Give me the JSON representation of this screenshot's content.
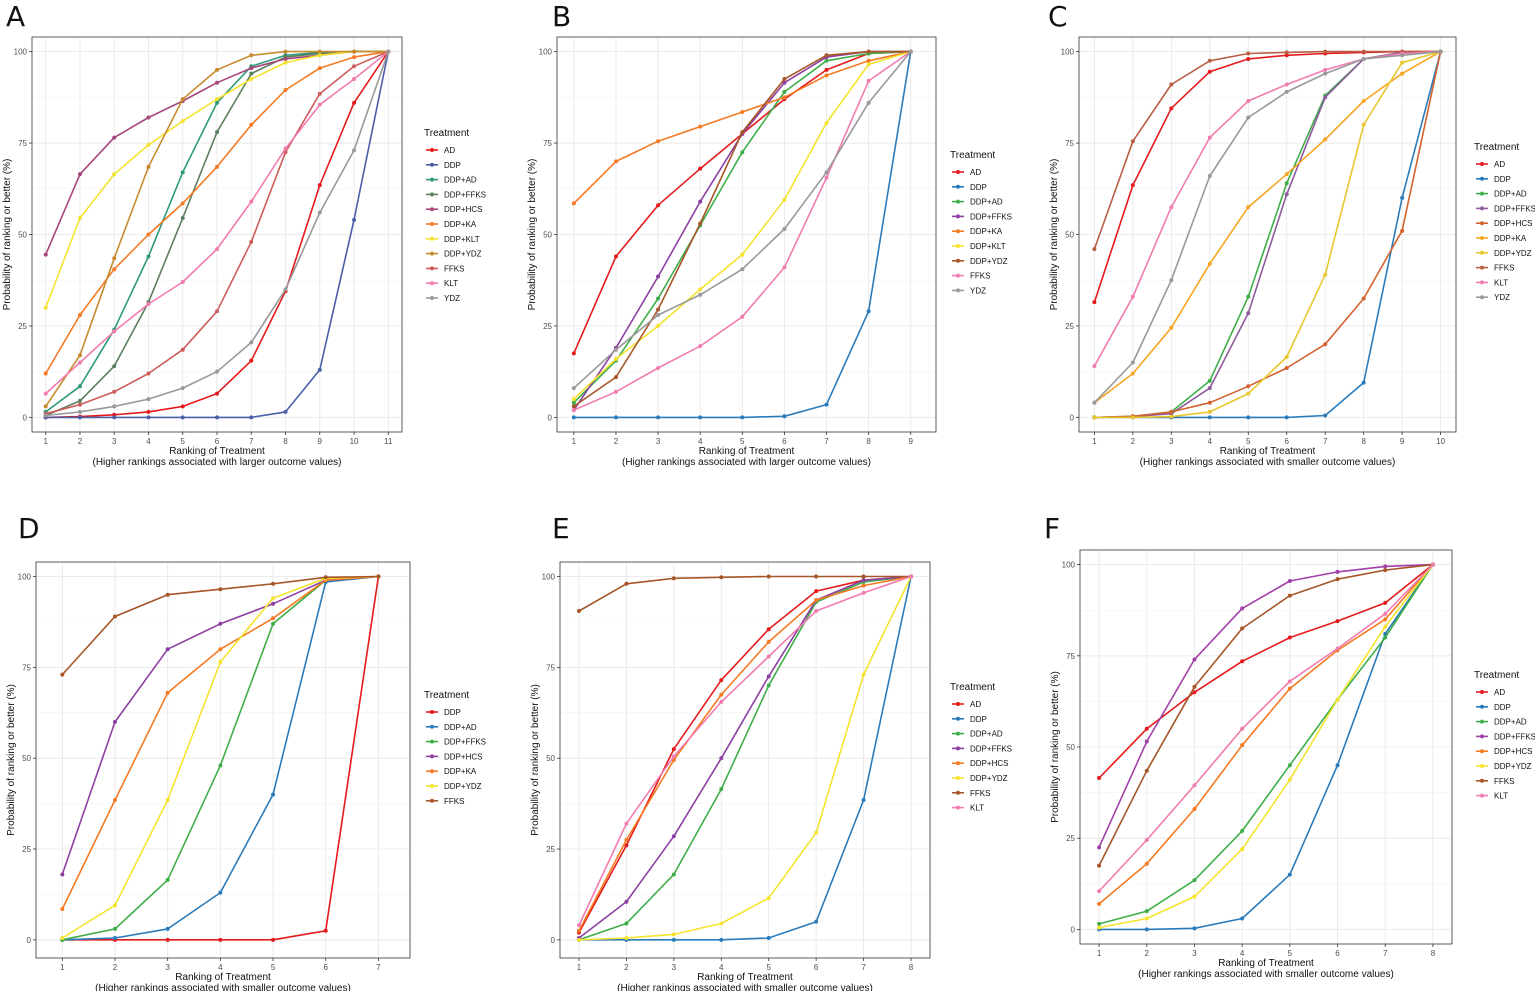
{
  "figure": {
    "layout": "2 rows x 3 columns"
  },
  "chart_data": [
    {
      "panel": "A",
      "type": "line",
      "title": "",
      "xlabel": "Ranking of Treatment",
      "xlabel2": "(Higher rankings associated with larger outcome values)",
      "ylabel": "Probability of ranking or better (%)",
      "x": [
        1,
        2,
        3,
        4,
        5,
        6,
        7,
        8,
        9,
        10,
        11
      ],
      "xlim": [
        0.6,
        11.4
      ],
      "ylim": [
        -4,
        104
      ],
      "yticks": [
        0,
        25,
        50,
        75,
        100
      ],
      "grid": true,
      "legend_title": "Treatment",
      "legend_position": "right",
      "series": [
        {
          "name": "AD",
          "color": "#e41a1c",
          "values": [
            0,
            0.2,
            0.7,
            1.5,
            3,
            6.5,
            15.5,
            34.5,
            63.5,
            86,
            100
          ]
        },
        {
          "name": "DDP",
          "color": "#4a5fa8",
          "values": [
            0,
            0,
            0,
            0,
            0,
            0,
            0,
            1.5,
            13,
            54,
            100
          ]
        },
        {
          "name": "DDP+AD",
          "color": "#2e9a7a",
          "values": [
            1.5,
            8.5,
            24,
            44,
            67,
            86,
            96,
            99,
            99.8,
            100,
            100
          ]
        },
        {
          "name": "DDP+FFKS",
          "color": "#5b7f5e",
          "values": [
            0.5,
            4.5,
            14,
            31.5,
            54.5,
            78,
            94,
            98.5,
            99.5,
            100,
            100
          ]
        },
        {
          "name": "DDP+HCS",
          "color": "#a8467c",
          "values": [
            44.5,
            66.5,
            76.5,
            82,
            86.5,
            91.5,
            95.5,
            98,
            99,
            100,
            100
          ]
        },
        {
          "name": "DDP+KA",
          "color": "#f47a24",
          "values": [
            12,
            28,
            40.5,
            50,
            58.5,
            68.5,
            80,
            89.5,
            95.5,
            98.5,
            100
          ]
        },
        {
          "name": "DDP+KLT",
          "color": "#f5e32f",
          "values": [
            30,
            54.5,
            66.5,
            74.5,
            81,
            87,
            92.5,
            97,
            99,
            100,
            100
          ]
        },
        {
          "name": "DDP+YDZ",
          "color": "#c88a2e",
          "values": [
            3,
            17,
            43.5,
            68.5,
            87,
            95,
            99,
            100,
            100,
            100,
            100
          ]
        },
        {
          "name": "FFKS",
          "color": "#cd5c5c",
          "values": [
            1,
            3.5,
            7,
            12,
            18.5,
            29,
            48,
            72.5,
            88.5,
            96,
            100
          ]
        },
        {
          "name": "KLT",
          "color": "#f17cb0",
          "values": [
            6.5,
            15,
            23.5,
            31,
            37,
            46,
            59,
            73.5,
            85.5,
            92.5,
            100
          ]
        },
        {
          "name": "YDZ",
          "color": "#999999",
          "values": [
            0.5,
            1.5,
            3,
            5,
            8,
            12.5,
            20.5,
            35,
            56,
            73,
            100
          ]
        }
      ]
    },
    {
      "panel": "B",
      "type": "line",
      "title": "",
      "xlabel": "Ranking of Treatment",
      "xlabel2": "(Higher rankings associated with larger outcome values)",
      "ylabel": "Probability of ranking or better (%)",
      "x": [
        1,
        2,
        3,
        4,
        5,
        6,
        7,
        8,
        9
      ],
      "xlim": [
        0.6,
        9.6
      ],
      "ylim": [
        -4,
        104
      ],
      "yticks": [
        0,
        25,
        50,
        75,
        100
      ],
      "grid": true,
      "legend_title": "Treatment",
      "legend_position": "right",
      "series": [
        {
          "name": "AD",
          "color": "#e41a1c",
          "values": [
            17.5,
            44,
            58,
            68,
            77.5,
            87,
            95,
            99.5,
            100
          ]
        },
        {
          "name": "DDP",
          "color": "#2b7bba",
          "values": [
            0,
            0,
            0,
            0,
            0,
            0.3,
            3.5,
            29,
            100
          ]
        },
        {
          "name": "DDP+AD",
          "color": "#3fae49",
          "values": [
            4,
            15.5,
            32.5,
            52.5,
            72.5,
            89,
            97.5,
            99.5,
            100
          ]
        },
        {
          "name": "DDP+FFKS",
          "color": "#8e3fa3",
          "values": [
            2,
            19,
            38.5,
            59,
            77.5,
            91.5,
            98.5,
            100,
            100
          ]
        },
        {
          "name": "DDP+KA",
          "color": "#f47a24",
          "values": [
            58.5,
            70,
            75.5,
            79.5,
            83.5,
            87.5,
            93.5,
            97.5,
            100
          ]
        },
        {
          "name": "DDP+KLT",
          "color": "#f5e32f",
          "values": [
            5,
            16,
            25,
            35,
            44.5,
            59.5,
            80.5,
            96.5,
            100
          ]
        },
        {
          "name": "DDP+YDZ",
          "color": "#a65628",
          "values": [
            3,
            11,
            29.5,
            53,
            78,
            92.5,
            99,
            100,
            100
          ]
        },
        {
          "name": "FFKS",
          "color": "#f17cb0",
          "values": [
            2,
            7,
            13.5,
            19.5,
            27.5,
            41,
            65.5,
            92,
            100
          ]
        },
        {
          "name": "YDZ",
          "color": "#999999",
          "values": [
            8,
            18.5,
            28,
            33.5,
            40.5,
            51.5,
            67,
            86,
            100
          ]
        }
      ]
    },
    {
      "panel": "C",
      "type": "line",
      "title": "",
      "xlabel": "Ranking of Treatment",
      "xlabel2": "(Higher rankings associated with smaller outcome values)",
      "ylabel": "Probability of ranking or better (%)",
      "x": [
        1,
        2,
        3,
        4,
        5,
        6,
        7,
        8,
        9,
        10
      ],
      "xlim": [
        0.6,
        10.4
      ],
      "ylim": [
        -4,
        104
      ],
      "yticks": [
        0,
        25,
        50,
        75,
        100
      ],
      "grid": true,
      "legend_title": "Treatment",
      "legend_position": "right",
      "series": [
        {
          "name": "AD",
          "color": "#e41a1c",
          "values": [
            31.5,
            63.5,
            84.5,
            94.5,
            98,
            99,
            99.5,
            99.8,
            100,
            100
          ]
        },
        {
          "name": "DDP",
          "color": "#2b7bba",
          "values": [
            0,
            0,
            0,
            0,
            0,
            0,
            0.5,
            9.5,
            60,
            100
          ]
        },
        {
          "name": "DDP+AD",
          "color": "#3fae49",
          "values": [
            0,
            0.3,
            1.5,
            10,
            33,
            64,
            88,
            98,
            99.8,
            100
          ]
        },
        {
          "name": "DDP+FFKS",
          "color": "#8e5c9e",
          "values": [
            0,
            0.2,
            1,
            8,
            28.5,
            61,
            87.5,
            98,
            99.8,
            100
          ]
        },
        {
          "name": "DDP+HCS",
          "color": "#d2622f",
          "values": [
            0,
            0.3,
            1.5,
            4,
            8.5,
            13.5,
            20,
            32.5,
            51,
            100
          ]
        },
        {
          "name": "DDP+KA",
          "color": "#f5a623",
          "values": [
            4,
            12,
            24.5,
            42,
            57.5,
            66.5,
            76,
            86.5,
            94,
            100
          ]
        },
        {
          "name": "DDP+YDZ",
          "color": "#e8c72f",
          "values": [
            0,
            0,
            0.2,
            1.5,
            6.5,
            16.5,
            39,
            80,
            97,
            100
          ]
        },
        {
          "name": "FFKS",
          "color": "#b95e45",
          "values": [
            46,
            75.5,
            91,
            97.5,
            99.5,
            99.8,
            100,
            100,
            100,
            100
          ]
        },
        {
          "name": "KLT",
          "color": "#f17cb0",
          "values": [
            14,
            33,
            57.5,
            76.5,
            86.5,
            91,
            95,
            98,
            99.5,
            100
          ]
        },
        {
          "name": "YDZ",
          "color": "#999999",
          "values": [
            4,
            15,
            37.5,
            66,
            82,
            89,
            94,
            98,
            99,
            100
          ]
        }
      ]
    },
    {
      "panel": "D",
      "type": "line",
      "title": "",
      "xlabel": "Ranking of Treatment",
      "xlabel2": "(Higher rankings associated with smaller outcome values)",
      "ylabel": "Probability of ranking or better (%)",
      "x": [
        1,
        2,
        3,
        4,
        5,
        6,
        7
      ],
      "xlim": [
        0.5,
        7.6
      ],
      "ylim": [
        -5,
        104
      ],
      "yticks": [
        0,
        25,
        50,
        75,
        100
      ],
      "grid": true,
      "legend_title": "Treatment",
      "legend_position": "right",
      "series": [
        {
          "name": "DDP",
          "color": "#e41a1c",
          "values": [
            0,
            0,
            0,
            0,
            0,
            2.5,
            100
          ]
        },
        {
          "name": "DDP+AD",
          "color": "#2b7bba",
          "values": [
            0,
            0.5,
            3,
            13,
            40,
            98.5,
            100
          ]
        },
        {
          "name": "DDP+FFKS",
          "color": "#3fae49",
          "values": [
            0,
            3,
            16.5,
            48,
            87,
            99,
            100
          ]
        },
        {
          "name": "DDP+HCS",
          "color": "#8e3fa3",
          "values": [
            18,
            60,
            80,
            87,
            92.5,
            99,
            100
          ]
        },
        {
          "name": "DDP+KA",
          "color": "#f47a24",
          "values": [
            8.5,
            38.5,
            68,
            80,
            88.5,
            99,
            100
          ]
        },
        {
          "name": "DDP+YDZ",
          "color": "#f5e32f",
          "values": [
            0.5,
            9.5,
            38.5,
            76.5,
            94,
            99.5,
            100
          ]
        },
        {
          "name": "FFKS",
          "color": "#a65628",
          "values": [
            73,
            89,
            95,
            96.5,
            98,
            99.8,
            100
          ]
        }
      ]
    },
    {
      "panel": "E",
      "type": "line",
      "title": "",
      "xlabel": "Ranking of Treatment",
      "xlabel2": "(Higher rankings associated with smaller outcome values)",
      "ylabel": "Probability of ranking or better (%)",
      "x": [
        1,
        2,
        3,
        4,
        5,
        6,
        7,
        8
      ],
      "xlim": [
        0.6,
        8.4
      ],
      "ylim": [
        -5,
        104
      ],
      "yticks": [
        0,
        25,
        50,
        75,
        100
      ],
      "grid": true,
      "legend_title": "Treatment",
      "legend_position": "right",
      "series": [
        {
          "name": "AD",
          "color": "#e41a1c",
          "values": [
            2,
            26,
            52.5,
            71.5,
            85.5,
            96,
            99,
            100
          ]
        },
        {
          "name": "DDP",
          "color": "#2b7bba",
          "values": [
            0,
            0,
            0,
            0,
            0.5,
            5,
            38.5,
            100
          ]
        },
        {
          "name": "DDP+AD",
          "color": "#3fae49",
          "values": [
            0,
            4.5,
            18,
            41.5,
            70,
            93,
            98.5,
            100
          ]
        },
        {
          "name": "DDP+FFKS",
          "color": "#8e3fa3",
          "values": [
            0.5,
            10.5,
            28.5,
            50,
            72.5,
            93.5,
            99,
            100
          ]
        },
        {
          "name": "DDP+HCS",
          "color": "#f47a24",
          "values": [
            2.5,
            27.5,
            49.5,
            67.5,
            82,
            93.5,
            97.5,
            100
          ]
        },
        {
          "name": "DDP+YDZ",
          "color": "#f5e32f",
          "values": [
            0,
            0.5,
            1.5,
            4.5,
            11.5,
            29.5,
            73,
            100
          ]
        },
        {
          "name": "FFKS",
          "color": "#a65628",
          "values": [
            90.5,
            98,
            99.5,
            99.8,
            100,
            100,
            100,
            100
          ]
        },
        {
          "name": "KLT",
          "color": "#f17cb0",
          "values": [
            4,
            32,
            50.5,
            65.5,
            78,
            90.5,
            95.5,
            100
          ]
        }
      ]
    },
    {
      "panel": "F",
      "type": "line",
      "title": "",
      "xlabel": "Ranking of Treatment",
      "xlabel2": "(Higher rankings associated with smaller outcome values)",
      "ylabel": "Probability of ranking or better (%)",
      "x": [
        1,
        2,
        3,
        4,
        5,
        6,
        7,
        8
      ],
      "xlim": [
        0.6,
        8.4
      ],
      "ylim": [
        -4,
        104
      ],
      "yticks": [
        0,
        25,
        50,
        75,
        100
      ],
      "grid": true,
      "legend_title": "Treatment",
      "legend_position": "right",
      "series": [
        {
          "name": "AD",
          "color": "#e41a1c",
          "values": [
            41.5,
            55,
            65,
            73.5,
            80,
            84.5,
            89.5,
            100
          ]
        },
        {
          "name": "DDP",
          "color": "#2b7bba",
          "values": [
            0,
            0,
            0.3,
            3,
            15,
            45,
            81,
            100
          ]
        },
        {
          "name": "DDP+AD",
          "color": "#3fae49",
          "values": [
            1.5,
            5,
            13.5,
            27,
            45,
            63,
            80,
            100
          ]
        },
        {
          "name": "DDP+FFKS",
          "color": "#a23fa8",
          "values": [
            22.5,
            51.5,
            74,
            88,
            95.5,
            98,
            99.5,
            100
          ]
        },
        {
          "name": "DDP+HCS",
          "color": "#f47a24",
          "values": [
            7,
            18,
            33,
            50.5,
            66,
            76.5,
            85,
            100
          ]
        },
        {
          "name": "DDP+YDZ",
          "color": "#f5e32f",
          "values": [
            0.5,
            3,
            9,
            22,
            41,
            63,
            83,
            100
          ]
        },
        {
          "name": "FFKS",
          "color": "#a65628",
          "values": [
            17.5,
            43.5,
            66.5,
            82.5,
            91.5,
            96,
            98.5,
            100
          ]
        },
        {
          "name": "KLT",
          "color": "#f17cb0",
          "values": [
            10.5,
            24.5,
            39.5,
            55,
            68,
            77,
            86.5,
            100
          ]
        }
      ]
    }
  ]
}
